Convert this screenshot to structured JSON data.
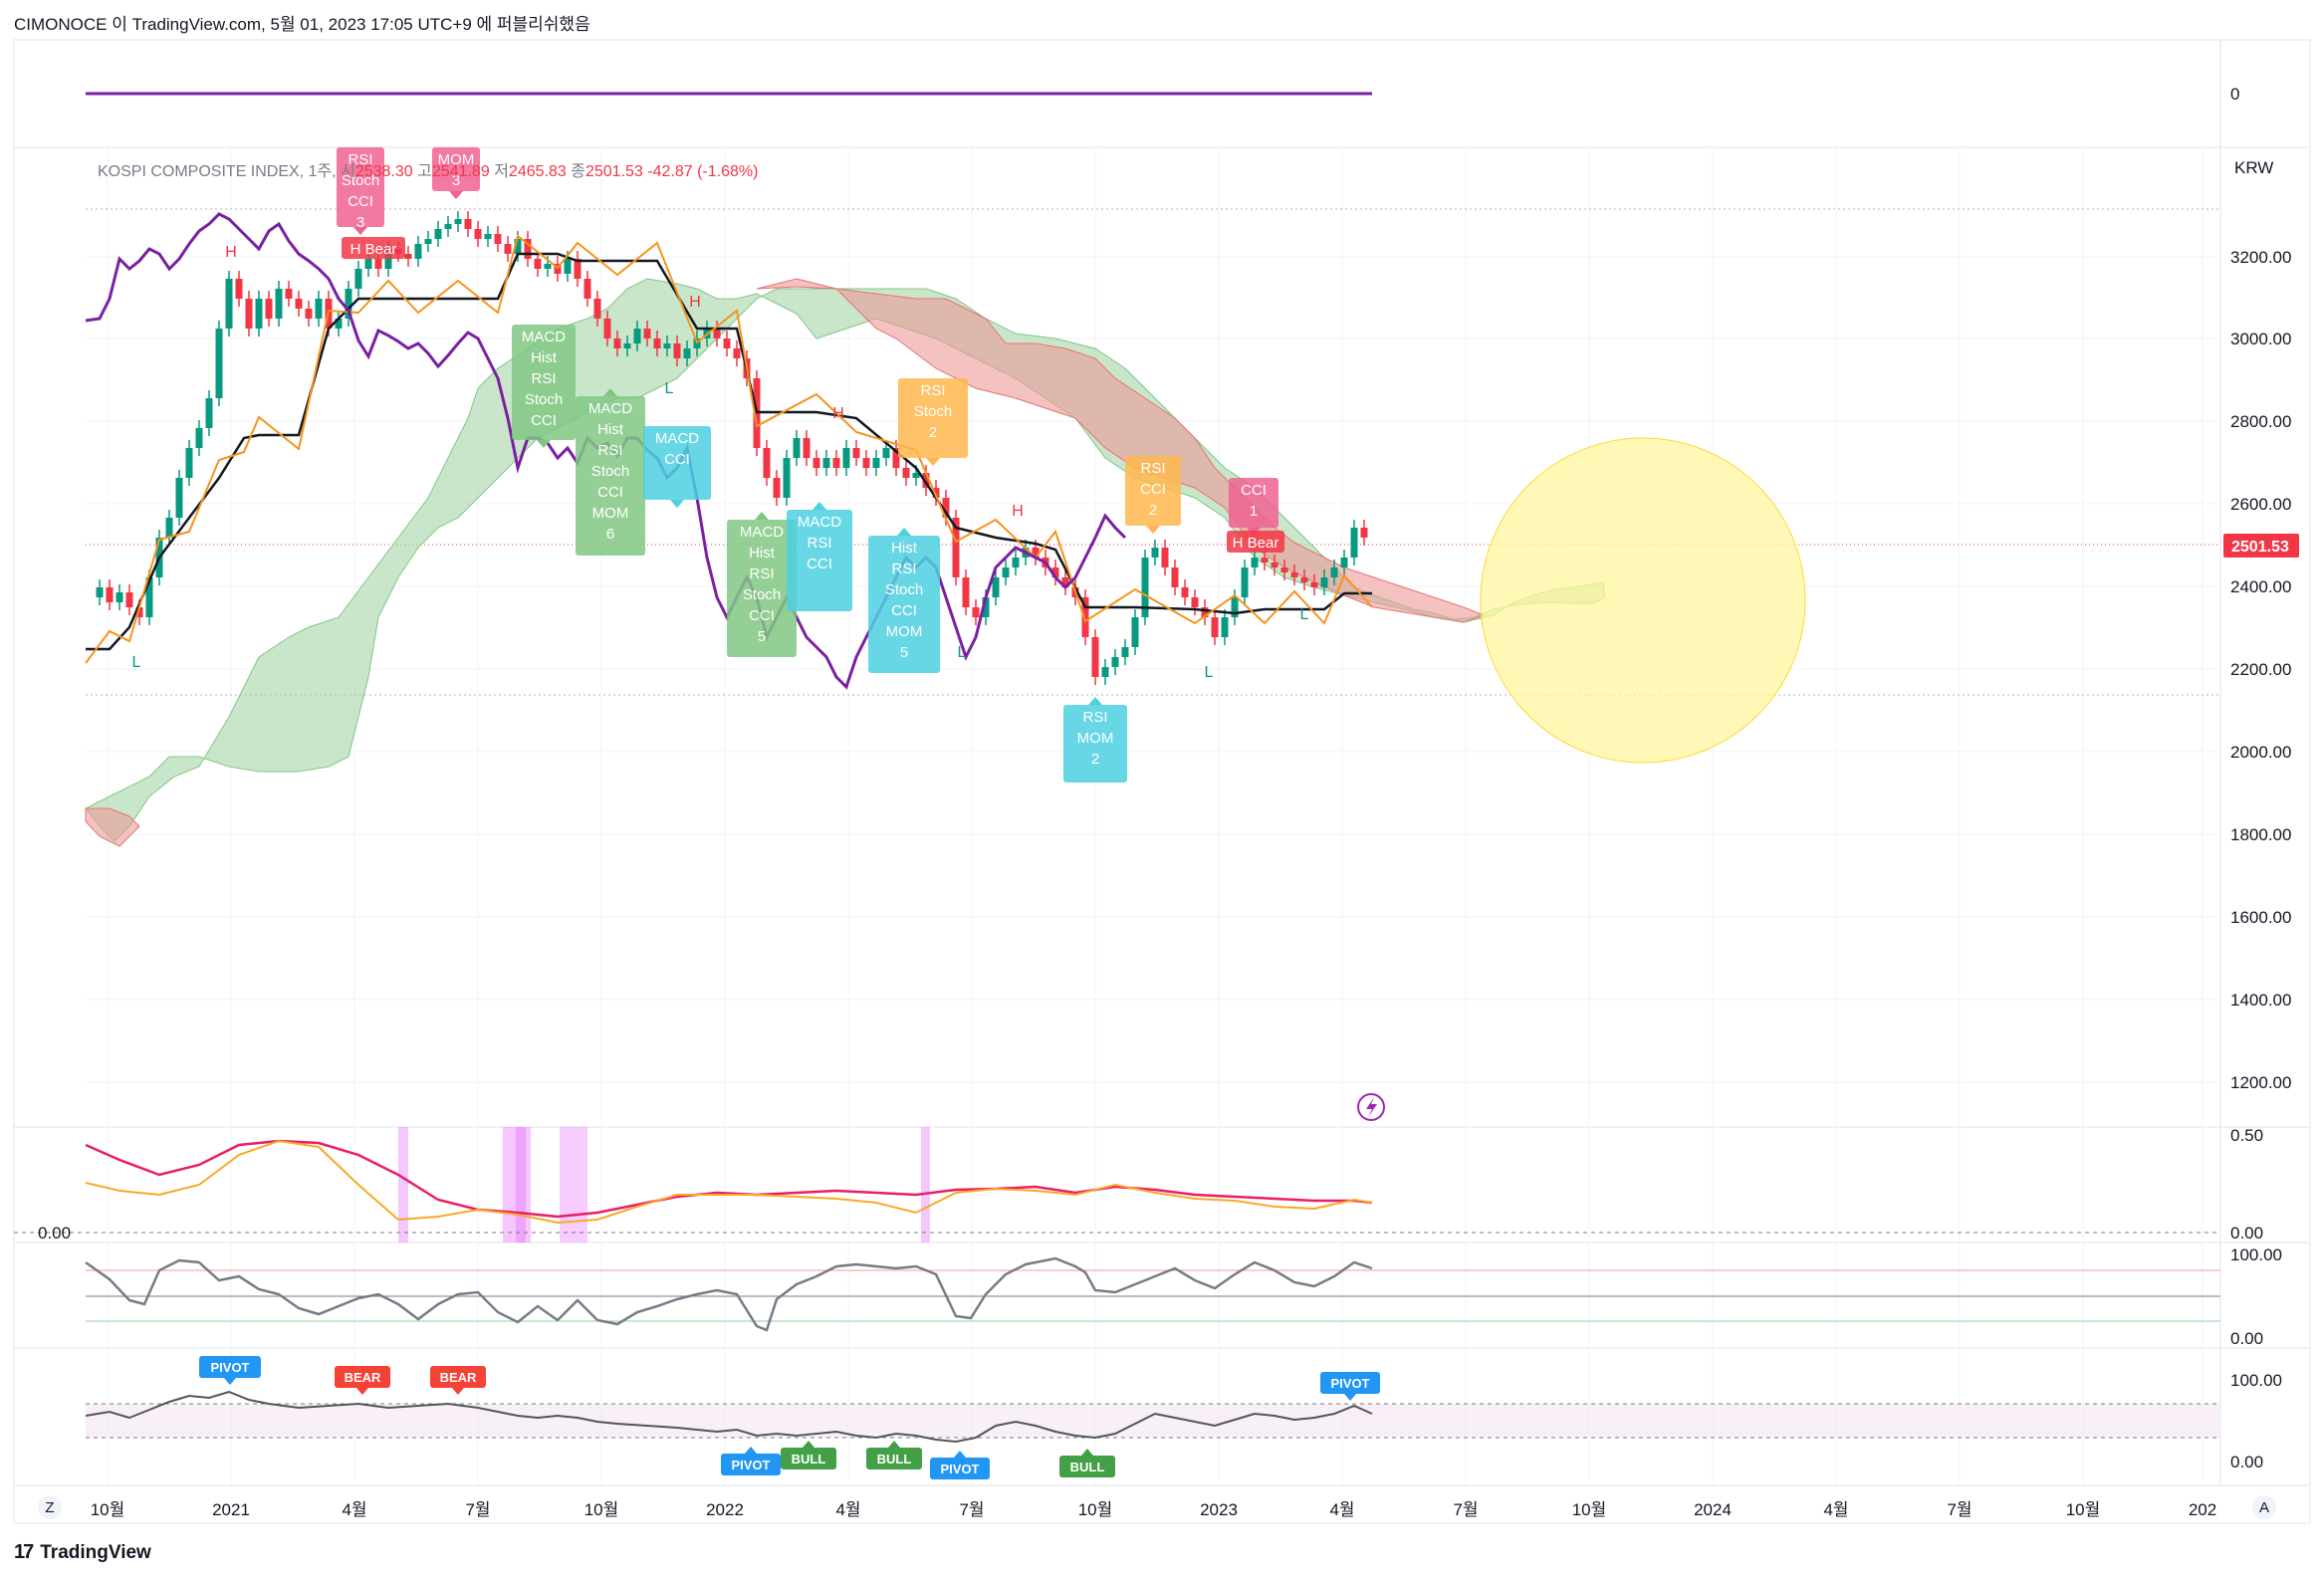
{
  "header": {
    "publisher_line": "CIMONOCE 이 TradingView.com, 5월 01, 2023 17:05 UTC+9 에 퍼블리쉬했음"
  },
  "legend": {
    "symbol": "KOSPI COMPOSITE INDEX, 1주,",
    "open_label": "시",
    "open": "2538.30",
    "high_label": "고",
    "high": "2541.89",
    "low_label": "저",
    "low": "2465.83",
    "close_label": "종",
    "close": "2501.53",
    "change": "-42.87 (-1.68%)"
  },
  "price_axis": {
    "currency": "KRW",
    "labels": [
      "3200.00",
      "3000.00",
      "2800.00",
      "2600.00",
      "2400.00",
      "2200.00",
      "2000.00",
      "1800.00",
      "1600.00",
      "1400.00",
      "1200.00"
    ],
    "last_price": "2501.53",
    "last_price_color": "#f23645"
  },
  "top_pane": {
    "axis_label": "0",
    "line_color": "#7b1fa2"
  },
  "osc_pane_1": {
    "left_label": "0.00",
    "right_top": "0.50",
    "right_bottom": "0.00"
  },
  "osc_pane_2": {
    "right_top": "100.00",
    "right_bottom": "0.00"
  },
  "osc_pane_3": {
    "right_top": "100.00",
    "right_bottom": "0.00"
  },
  "time_axis": {
    "labels": [
      "10월",
      "2021",
      "4월",
      "7월",
      "10월",
      "2022",
      "4월",
      "7월",
      "10월",
      "2023",
      "4월",
      "7월",
      "10월",
      "2024",
      "4월",
      "7월",
      "10월",
      "202"
    ],
    "left_button": "Z",
    "right_button": "A"
  },
  "signal_tags": [
    {
      "text": "RSI\nStoch\nCCI\n3",
      "color": "#f06292"
    },
    {
      "text": "MOM\n3",
      "color": "#f06292"
    },
    {
      "text": "H Bear",
      "color": "#f23645"
    },
    {
      "text": "MACD\nHist\nRSI\nStoch\nCCI",
      "color": "#81c784"
    },
    {
      "text": "MACD\nHist\nRSI\nStoch\nCCI\nMOM\n6",
      "color": "#81c784"
    },
    {
      "text": "MACD\nCCI",
      "color": "#4dd0e1"
    },
    {
      "text": "MACD\nHist\nRSI\nStoch\nCCI\n5",
      "color": "#81c784"
    },
    {
      "text": "MACD\nRSI\nCCI",
      "color": "#4dd0e1"
    },
    {
      "text": "RSI\nStoch\n2",
      "color": "#ffb74d"
    },
    {
      "text": "Hist\nRSI\nStoch\nCCI\nMOM\n5",
      "color": "#4dd0e1"
    },
    {
      "text": "RSI\nCCI\n2",
      "color": "#ffb74d"
    },
    {
      "text": "CCI\n1",
      "color": "#f06292"
    },
    {
      "text": "H Bear",
      "color": "#f23645"
    },
    {
      "text": "RSI\nMOM\n2",
      "color": "#4dd0e1"
    }
  ],
  "hl_marks": [
    {
      "text": "H",
      "color": "#f23645"
    },
    {
      "text": "H",
      "color": "#f23645"
    },
    {
      "text": "H",
      "color": "#f23645"
    },
    {
      "text": "H",
      "color": "#f23645"
    },
    {
      "text": "L",
      "color": "#089981"
    },
    {
      "text": "L",
      "color": "#089981"
    },
    {
      "text": "L",
      "color": "#089981"
    },
    {
      "text": "L",
      "color": "#089981"
    },
    {
      "text": "L",
      "color": "#089981"
    }
  ],
  "pivot_tags": [
    {
      "text": "PIVOT",
      "color": "#2196f3"
    },
    {
      "text": "BEAR",
      "color": "#f44336"
    },
    {
      "text": "BEAR",
      "color": "#f44336"
    },
    {
      "text": "PIVOT",
      "color": "#2196f3"
    },
    {
      "text": "BULL",
      "color": "#43a047"
    },
    {
      "text": "BULL",
      "color": "#43a047"
    },
    {
      "text": "PIVOT",
      "color": "#2196f3"
    },
    {
      "text": "BULL",
      "color": "#43a047"
    },
    {
      "text": "PIVOT",
      "color": "#2196f3"
    }
  ],
  "footer": {
    "brand": "TradingView",
    "brand_mark": "17"
  },
  "colors": {
    "up": "#089981",
    "down": "#f23645",
    "cloud_bull": "#a5d6a7",
    "cloud_bear": "#ef9a9a",
    "tenkan": "#f7931a",
    "kijun": "#131722",
    "lagging": "#7b1fa2",
    "highlight_circle": "#fff59d"
  }
}
